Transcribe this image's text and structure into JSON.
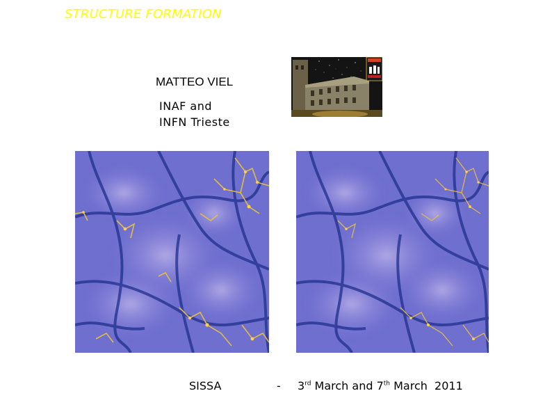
{
  "slide": {
    "title": "STRUCTURE FORMATION",
    "author": "MATTEO VIEL",
    "affiliation": [
      "INAF and",
      "INFN Trieste"
    ],
    "footer": {
      "institute": "SISSA",
      "separator": "-",
      "date_parts": {
        "d1": "3",
        "s1": "rd",
        "m1": " March and ",
        "d2": "7",
        "s2": "th",
        "m2": " March  2011"
      }
    }
  },
  "colors": {
    "title": "#ffff00",
    "sim_background": "#6f6fd0",
    "filament": "#e8c040",
    "photo_sky": "#141414"
  }
}
